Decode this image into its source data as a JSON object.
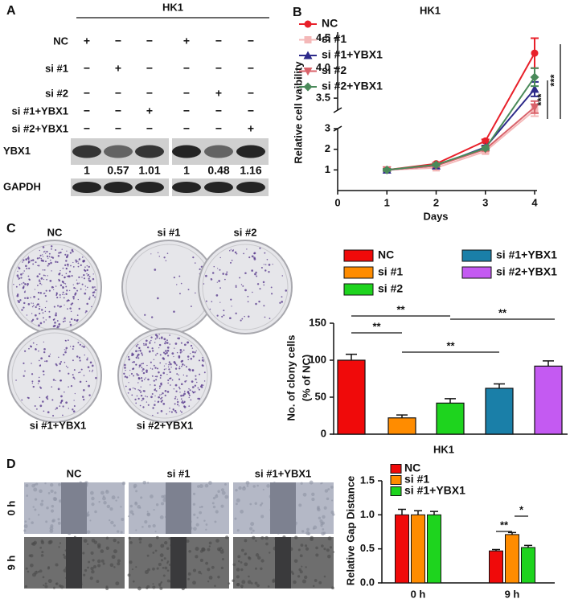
{
  "panel_labels": [
    "A",
    "B",
    "C",
    "D"
  ],
  "western_blot": {
    "title": "HK1",
    "rows": [
      {
        "label": "NC",
        "lanes": [
          "+",
          "−",
          "−",
          "+",
          "−",
          "−"
        ]
      },
      {
        "label": "si #1",
        "lanes": [
          "−",
          "+",
          "−",
          "−",
          "−",
          "−"
        ]
      },
      {
        "label": "si #2",
        "lanes": [
          "−",
          "−",
          "−",
          "−",
          "+",
          "−"
        ]
      },
      {
        "label": "si #1+YBX1",
        "lanes": [
          "−",
          "−",
          "+",
          "−",
          "−",
          "−"
        ]
      },
      {
        "label": "si #2+YBX1",
        "lanes": [
          "−",
          "−",
          "−",
          "−",
          "−",
          "+"
        ]
      }
    ],
    "blots": [
      "YBX1",
      "GAPDH"
    ],
    "quantification": [
      1,
      0.57,
      1.01,
      1,
      0.48,
      1.16
    ]
  },
  "colony_images": {
    "labels": [
      "NC",
      "si #1",
      "si #2",
      "si #1+YBX1",
      "si #2+YBX1"
    ]
  },
  "migration_images": {
    "columns": [
      "NC",
      "si #1",
      "si #1+YBX1"
    ],
    "rows": [
      "0 h",
      "9 h"
    ]
  },
  "chart_data": [
    {
      "type": "line",
      "title": "HK1",
      "xlabel": "Days",
      "ylabel": "Relative cell vaibility",
      "x": [
        1,
        2,
        3,
        4
      ],
      "xlim": [
        0,
        4
      ],
      "xticks": [
        0,
        1,
        2,
        3,
        4
      ],
      "ylim": [
        0,
        4.6
      ],
      "axis_break": [
        3,
        3.3
      ],
      "yticks": [
        1,
        2,
        3,
        3.5,
        {
          "value": 4,
          "label": "4.0"
        },
        4.5
      ],
      "series": [
        {
          "name": "NC",
          "color": "#e8202a",
          "marker": "circle",
          "values": [
            1,
            1.3,
            2.4,
            4.25
          ],
          "errors": [
            0.05,
            0.05,
            0.08,
            0.25
          ]
        },
        {
          "name": "si #1",
          "color": "#f4b8b8",
          "marker": "square",
          "values": [
            1,
            1.1,
            1.9,
            3.3
          ],
          "errors": [
            0.05,
            0.05,
            0.08,
            0.1
          ]
        },
        {
          "name": "si #1+YBX1",
          "color": "#2d2a8a",
          "marker": "triangle-up",
          "values": [
            1,
            1.2,
            2.1,
            3.65
          ],
          "errors": [
            0.05,
            0.05,
            0.08,
            0.12
          ]
        },
        {
          "name": "si #2",
          "color": "#d9626a",
          "marker": "triangle-down",
          "values": [
            1,
            1.2,
            2.0,
            3.35
          ],
          "errors": [
            0.05,
            0.05,
            0.08,
            0.1
          ]
        },
        {
          "name": "si #2+YBX1",
          "color": "#4a8a5a",
          "marker": "diamond",
          "values": [
            1,
            1.25,
            2.05,
            3.85
          ],
          "errors": [
            0.05,
            0.05,
            0.08,
            0.15
          ]
        }
      ],
      "annotations": [
        "***",
        "***"
      ]
    },
    {
      "type": "bar",
      "xlabel": "HK1",
      "ylabel": [
        "No. of clony cells",
        "(% of NC)"
      ],
      "categories": [
        "NC",
        "si #1",
        "si #2",
        "si #1+YBX1",
        "si #2+YBX1"
      ],
      "values": [
        100,
        22,
        42,
        62,
        92
      ],
      "errors": [
        8,
        4,
        6,
        6,
        7
      ],
      "colors": [
        "#f00a0a",
        "#ff8c00",
        "#1ed41e",
        "#1a7fa8",
        "#c45af2"
      ],
      "ylim": [
        0,
        150
      ],
      "yticks": [
        0,
        50,
        100,
        150
      ],
      "annotations": [
        "**",
        "**",
        "**",
        "**"
      ]
    },
    {
      "type": "grouped_bar",
      "ylabel": "Relative Gap Distance",
      "categories": [
        "0 h",
        "9 h"
      ],
      "series": [
        {
          "name": "NC",
          "color": "#f00a0a",
          "values": [
            1.0,
            0.47
          ],
          "errors": [
            0.08,
            0.02
          ]
        },
        {
          "name": "si #1",
          "color": "#ff8c00",
          "values": [
            1.0,
            0.71
          ],
          "errors": [
            0.06,
            0.03
          ]
        },
        {
          "name": "si #1+YBX1",
          "color": "#1ed41e",
          "values": [
            1.0,
            0.52
          ],
          "errors": [
            0.05,
            0.03
          ]
        }
      ],
      "ylim": [
        0,
        1.5
      ],
      "yticks": [
        {
          "value": 0,
          "label": "0.0"
        },
        0.5,
        {
          "value": 1,
          "label": "1.0"
        },
        1.5
      ],
      "annotations": [
        "**",
        "*"
      ]
    }
  ]
}
